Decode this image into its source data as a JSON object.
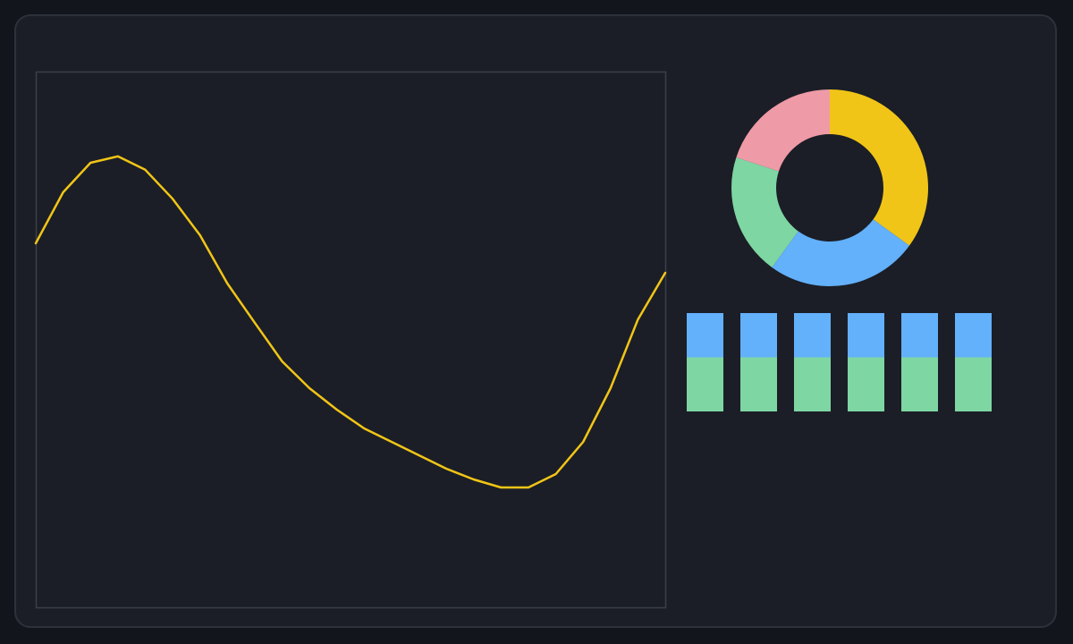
{
  "colors": {
    "page_bg": "#12151c",
    "card_bg": "#1b1e26",
    "card_border": "#2d313b",
    "plot_border": "#3b3f48",
    "line": "#f1c517",
    "blue": "#63b0fb",
    "green": "#7ed6a3",
    "pink": "#ef9aa7",
    "yellow": "#f1c517"
  },
  "chart_data": [
    {
      "type": "line",
      "title": "",
      "xlabel": "",
      "ylabel": "",
      "grid": false,
      "xlim": [
        0,
        23
      ],
      "ylim": [
        0,
        1
      ],
      "series": [
        {
          "color": "#f1c517",
          "x": [
            0,
            1,
            2,
            3,
            4,
            5,
            6,
            7,
            8,
            9,
            10,
            11,
            12,
            13,
            14,
            15,
            16,
            17,
            18,
            19,
            20,
            21,
            22,
            23
          ],
          "y": [
            0.68,
            0.775,
            0.83,
            0.842,
            0.817,
            0.763,
            0.695,
            0.605,
            0.532,
            0.46,
            0.41,
            0.37,
            0.335,
            0.31,
            0.285,
            0.26,
            0.24,
            0.225,
            0.225,
            0.25,
            0.31,
            0.41,
            0.538,
            0.625
          ]
        }
      ]
    },
    {
      "type": "pie",
      "donut": true,
      "labels": [
        "",
        "",
        "",
        ""
      ],
      "values": [
        35,
        25,
        20,
        20
      ],
      "colors": [
        "#f1c517",
        "#63b0fb",
        "#7ed6a3",
        "#ef9aa7"
      ]
    },
    {
      "type": "bar",
      "stacked": true,
      "categories": [
        "",
        "",
        "",
        "",
        "",
        ""
      ],
      "ylim": [
        0,
        1
      ],
      "series": [
        {
          "color": "#7ed6a3",
          "values": [
            0.55,
            0.55,
            0.55,
            0.55,
            0.55,
            0.55
          ]
        },
        {
          "color": "#63b0fb",
          "values": [
            0.45,
            0.45,
            0.45,
            0.45,
            0.45,
            0.45
          ]
        }
      ]
    }
  ]
}
